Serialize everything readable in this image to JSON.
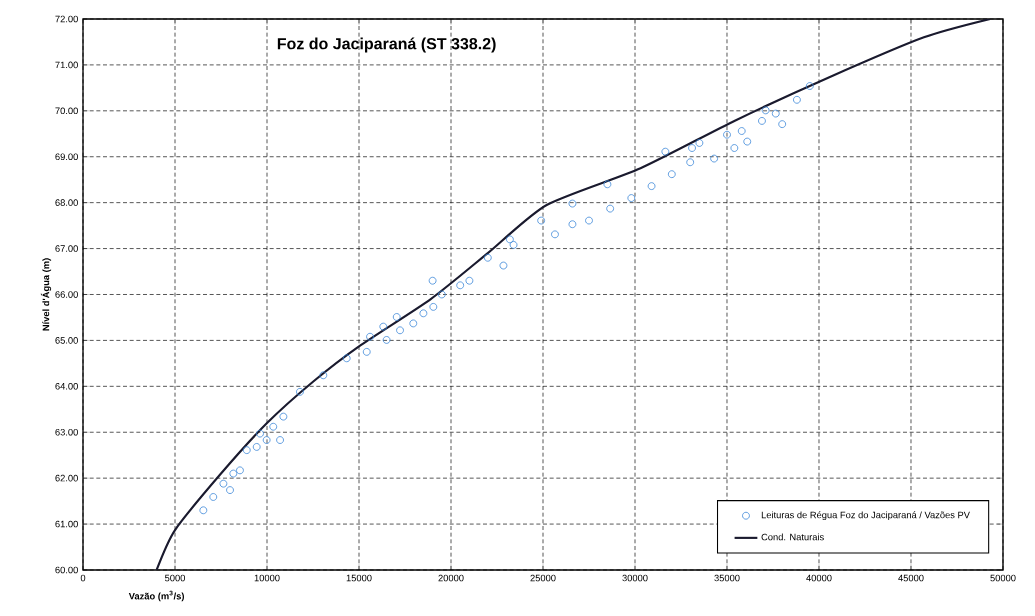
{
  "chart_data": {
    "type": "scatter",
    "title": "Foz do Jaciparaná (ST 338.2)",
    "xlabel": "Vazão (m$^{3}$/s)",
    "ylabel": "Nível d'Água (m)",
    "xlim": [
      0,
      50000
    ],
    "ylim": [
      60,
      72
    ],
    "xticks": [
      0,
      5000,
      10000,
      15000,
      20000,
      25000,
      30000,
      35000,
      40000,
      45000,
      50000
    ],
    "yticks": [
      {
        "value": 60,
        "label": "60.00"
      },
      {
        "value": 61,
        "label": "61.00"
      },
      {
        "value": 62,
        "label": "62.00"
      },
      {
        "value": 63,
        "label": "63.00"
      },
      {
        "value": 64,
        "label": "64.00"
      },
      {
        "value": 65,
        "label": "65.00"
      },
      {
        "value": 66,
        "label": "66.00"
      },
      {
        "value": 67,
        "label": "67.00"
      },
      {
        "value": 68,
        "label": "68.00"
      },
      {
        "value": 69,
        "label": "69.00"
      },
      {
        "value": 70,
        "label": "70.00"
      },
      {
        "value": 71,
        "label": "71.00"
      },
      {
        "value": 72,
        "label": "72.00"
      }
    ],
    "grid": true,
    "legend": "bottom right",
    "marker": "circle",
    "series": [
      {
        "name": "Leituras de Régua Foz do Jaciparaná / Vazões PV",
        "color": "#3b86d8",
        "x": [
          6540,
          7080,
          7630,
          8170,
          8530,
          7990,
          8900,
          9440,
          9620,
          10340,
          10890,
          10710,
          9980,
          11790,
          13060,
          14330,
          15420,
          15600,
          16320,
          16500,
          17230,
          17050,
          17950,
          18500,
          19040,
          19000,
          19500,
          20500,
          21000,
          22000,
          22850,
          23400,
          23200,
          24900,
          25650,
          26600,
          26600,
          27500,
          28500,
          28650,
          29800,
          30900,
          32000,
          31650,
          33000,
          33100,
          34300,
          33500,
          35000,
          35800,
          36100,
          35400,
          36900,
          37650,
          38000,
          38800,
          39500,
          37100
        ],
        "values": [
          61.3,
          61.59,
          61.88,
          62.1,
          62.17,
          61.74,
          62.61,
          62.68,
          62.97,
          63.12,
          63.34,
          62.83,
          62.83,
          63.88,
          64.24,
          64.61,
          64.75,
          65.08,
          65.3,
          65.01,
          65.22,
          65.51,
          65.37,
          65.59,
          65.73,
          66.3,
          66.0,
          66.2,
          66.3,
          66.8,
          66.63,
          67.08,
          67.2,
          67.61,
          67.31,
          67.53,
          67.98,
          67.61,
          68.4,
          67.87,
          68.1,
          68.36,
          68.62,
          69.11,
          68.88,
          69.19,
          68.96,
          69.3,
          69.48,
          69.56,
          69.33,
          69.19,
          69.78,
          69.94,
          69.71,
          70.24,
          70.54,
          70.01
        ]
      },
      {
        "name": "Cond. Naturais",
        "type": "line",
        "color": "#1a1a2e",
        "marker": "none",
        "line_style": "solid",
        "x": [
          4000,
          5000,
          7500,
          10000,
          12500,
          15000,
          18900,
          22000,
          25200,
          30300,
          35400,
          40500,
          45700,
          49300
        ],
        "values": [
          60,
          60.87,
          62.1,
          63.2,
          64.1,
          64.87,
          65.9,
          66.9,
          67.95,
          68.75,
          69.78,
          70.72,
          71.6,
          72
        ]
      }
    ]
  }
}
